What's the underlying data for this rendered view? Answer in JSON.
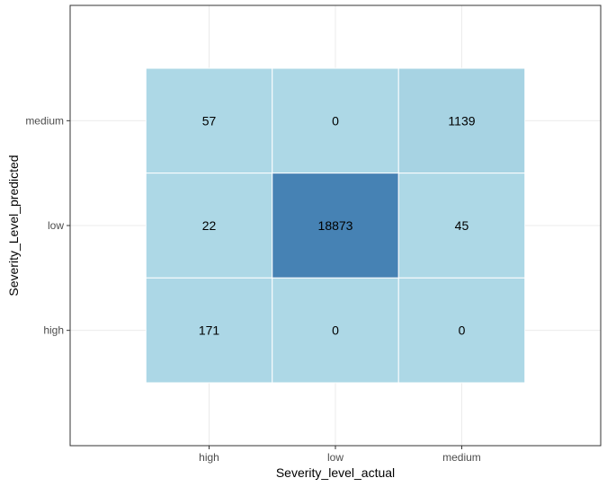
{
  "chart_data": {
    "type": "heatmap",
    "title": "",
    "xlabel": "Severity_level_actual",
    "ylabel": "Severity_Level_predicted",
    "x_categories": [
      "high",
      "low",
      "medium"
    ],
    "y_categories": [
      "high",
      "low",
      "medium"
    ],
    "cells": [
      {
        "x": "high",
        "y": "medium",
        "value": 57
      },
      {
        "x": "low",
        "y": "medium",
        "value": 0
      },
      {
        "x": "medium",
        "y": "medium",
        "value": 1139
      },
      {
        "x": "high",
        "y": "low",
        "value": 22
      },
      {
        "x": "low",
        "y": "low",
        "value": 18873
      },
      {
        "x": "medium",
        "y": "low",
        "value": 45
      },
      {
        "x": "high",
        "y": "high",
        "value": 171
      },
      {
        "x": "low",
        "y": "high",
        "value": 0
      },
      {
        "x": "medium",
        "y": "high",
        "value": 0
      }
    ],
    "color_low": "#add8e6",
    "color_high": "#4682b4",
    "grid": true,
    "legend": "none"
  }
}
